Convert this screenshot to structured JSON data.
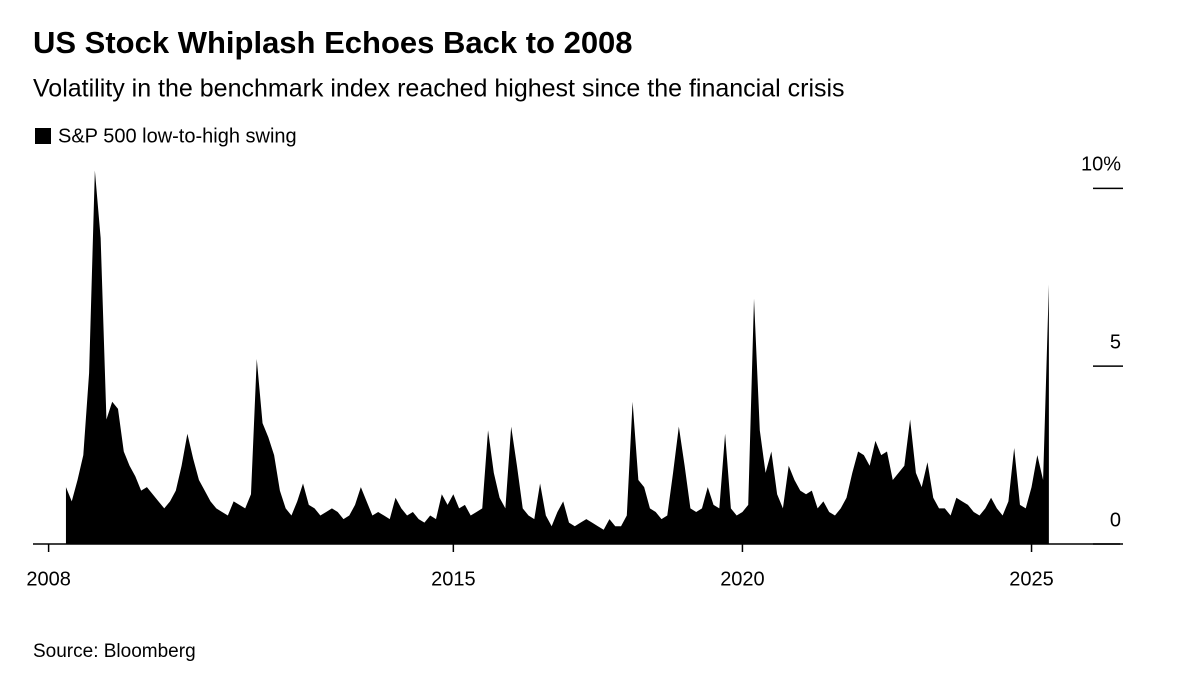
{
  "chart_data": {
    "type": "area",
    "title": "US Stock Whiplash Echoes Back to 2008",
    "subtitle": "Volatility in the benchmark index reached highest since the financial crisis",
    "source": "Source: Bloomberg",
    "x": [
      2008.3,
      2008.4,
      2008.5,
      2008.6,
      2008.7,
      2008.8,
      2008.9,
      2009.0,
      2009.1,
      2009.2,
      2009.3,
      2009.4,
      2009.5,
      2009.6,
      2009.7,
      2009.8,
      2009.9,
      2010.0,
      2010.1,
      2010.2,
      2010.3,
      2010.4,
      2010.5,
      2010.6,
      2010.7,
      2010.8,
      2010.9,
      2011.0,
      2011.1,
      2011.2,
      2011.3,
      2011.4,
      2011.5,
      2011.6,
      2011.7,
      2011.8,
      2011.9,
      2012.0,
      2012.1,
      2012.2,
      2012.3,
      2012.4,
      2012.5,
      2012.6,
      2012.7,
      2012.8,
      2012.9,
      2013.0,
      2013.1,
      2013.2,
      2013.3,
      2013.4,
      2013.5,
      2013.6,
      2013.7,
      2013.8,
      2013.9,
      2014.0,
      2014.1,
      2014.2,
      2014.3,
      2014.4,
      2014.5,
      2014.6,
      2014.7,
      2014.8,
      2014.9,
      2015.0,
      2015.1,
      2015.2,
      2015.3,
      2015.4,
      2015.5,
      2015.6,
      2015.7,
      2015.8,
      2015.9,
      2016.0,
      2016.1,
      2016.2,
      2016.3,
      2016.4,
      2016.5,
      2016.6,
      2016.7,
      2016.8,
      2016.9,
      2017.0,
      2017.1,
      2017.2,
      2017.3,
      2017.4,
      2017.5,
      2017.6,
      2017.7,
      2017.8,
      2017.9,
      2018.0,
      2018.1,
      2018.2,
      2018.3,
      2018.4,
      2018.5,
      2018.6,
      2018.7,
      2018.8,
      2018.9,
      2019.0,
      2019.1,
      2019.2,
      2019.3,
      2019.4,
      2019.5,
      2019.6,
      2019.7,
      2019.8,
      2019.9,
      2020.0,
      2020.1,
      2020.2,
      2020.3,
      2020.4,
      2020.5,
      2020.6,
      2020.7,
      2020.8,
      2020.9,
      2021.0,
      2021.1,
      2021.2,
      2021.3,
      2021.4,
      2021.5,
      2021.6,
      2021.7,
      2021.8,
      2021.9,
      2022.0,
      2022.1,
      2022.2,
      2022.3,
      2022.4,
      2022.5,
      2022.6,
      2022.7,
      2022.8,
      2022.9,
      2023.0,
      2023.1,
      2023.2,
      2023.3,
      2023.4,
      2023.5,
      2023.6,
      2023.7,
      2023.8,
      2023.9,
      2024.0,
      2024.1,
      2024.2,
      2024.3,
      2024.4,
      2024.5,
      2024.6,
      2024.7,
      2024.8,
      2024.9,
      2025.0,
      2025.1,
      2025.2,
      2025.3
    ],
    "series": [
      {
        "name": "S&P 500 low-to-high swing",
        "color": "#000000",
        "values": [
          1.6,
          1.2,
          1.8,
          2.5,
          4.8,
          10.5,
          8.6,
          3.5,
          4.0,
          3.8,
          2.6,
          2.2,
          1.9,
          1.5,
          1.6,
          1.4,
          1.2,
          1.0,
          1.2,
          1.5,
          2.2,
          3.1,
          2.4,
          1.8,
          1.5,
          1.2,
          1.0,
          0.9,
          0.8,
          1.2,
          1.1,
          1.0,
          1.4,
          5.2,
          3.4,
          3.0,
          2.5,
          1.5,
          1.0,
          0.8,
          1.2,
          1.7,
          1.1,
          1.0,
          0.8,
          0.9,
          1.0,
          0.9,
          0.7,
          0.8,
          1.1,
          1.6,
          1.2,
          0.8,
          0.9,
          0.8,
          0.7,
          1.3,
          1.0,
          0.8,
          0.9,
          0.7,
          0.6,
          0.8,
          0.7,
          1.4,
          1.1,
          1.4,
          1.0,
          1.1,
          0.8,
          0.9,
          1.0,
          3.2,
          2.0,
          1.3,
          1.0,
          3.3,
          2.2,
          1.0,
          0.8,
          0.7,
          1.7,
          0.8,
          0.5,
          0.9,
          1.2,
          0.6,
          0.5,
          0.6,
          0.7,
          0.6,
          0.5,
          0.4,
          0.7,
          0.5,
          0.5,
          0.8,
          4.0,
          1.8,
          1.6,
          1.0,
          0.9,
          0.7,
          0.8,
          2.0,
          3.3,
          2.2,
          1.0,
          0.9,
          1.0,
          1.6,
          1.1,
          1.0,
          3.1,
          1.0,
          0.8,
          0.9,
          1.1,
          6.9,
          3.2,
          2.0,
          2.6,
          1.4,
          1.0,
          2.2,
          1.8,
          1.5,
          1.4,
          1.5,
          1.0,
          1.2,
          0.9,
          0.8,
          1.0,
          1.3,
          2.0,
          2.6,
          2.5,
          2.2,
          2.9,
          2.5,
          2.6,
          1.8,
          2.0,
          2.2,
          3.5,
          2.0,
          1.6,
          2.3,
          1.3,
          1.0,
          1.0,
          0.8,
          1.3,
          1.2,
          1.1,
          0.9,
          0.8,
          1.0,
          1.3,
          1.0,
          0.8,
          1.2,
          2.7,
          1.1,
          1.0,
          1.6,
          2.5,
          1.8,
          7.3
        ]
      }
    ],
    "xlim": [
      2007.73,
      2026.53
    ],
    "xticks": [
      2008,
      2015,
      2020,
      2025
    ],
    "ylim": [
      0,
      10.6
    ],
    "yticks": [
      0,
      5,
      {
        "value": 10,
        "label": "10%"
      }
    ]
  }
}
